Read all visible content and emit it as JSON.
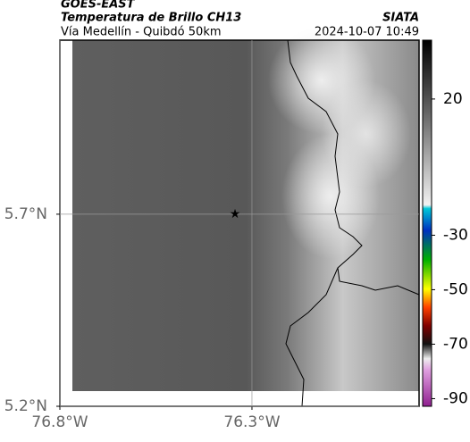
{
  "header": {
    "title": "GOES-EAST",
    "subtitle": "Temperatura de Brillo CH13",
    "route": "Vía Medellín - Quibdó 50km",
    "source": "SIATA",
    "datetime": "2024-10-07 10:49"
  },
  "map": {
    "lonlim": [
      -76.8,
      -75.865
    ],
    "latlim": [
      5.2,
      6.153
    ],
    "xticks": [
      {
        "value": -76.8,
        "label": "76.8°W"
      },
      {
        "value": -76.3,
        "label": "76.3°W"
      }
    ],
    "yticks": [
      {
        "value": 5.2,
        "label": "5.2°N"
      },
      {
        "value": 5.7,
        "label": "5.7°N"
      }
    ],
    "grid": true,
    "marker": {
      "lon": -76.344,
      "lat": 5.7
    }
  },
  "colorbar": {
    "lim": [
      41.6,
      -92.8
    ],
    "ticks": [
      20,
      -30,
      -50,
      -70,
      -90
    ]
  }
}
